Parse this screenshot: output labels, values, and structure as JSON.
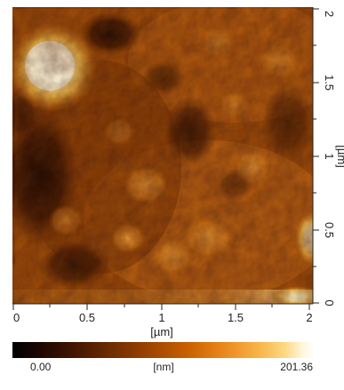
{
  "image": {
    "palette": [
      "#000000",
      "#3a1200",
      "#823600",
      "#c86000",
      "#f0972a",
      "#fdd882",
      "#ffffff"
    ]
  },
  "x_axis": {
    "ticks": [
      "0",
      "0.5",
      "1",
      "1.5",
      "2"
    ],
    "unit": "[µm]"
  },
  "y_axis": {
    "ticks": [
      "0",
      "0.5",
      "1",
      "1.5",
      "2"
    ],
    "unit": "[µm]"
  },
  "colorbar": {
    "min_label": "0.00",
    "unit_label": "[nm]",
    "max_label": "201.36"
  }
}
